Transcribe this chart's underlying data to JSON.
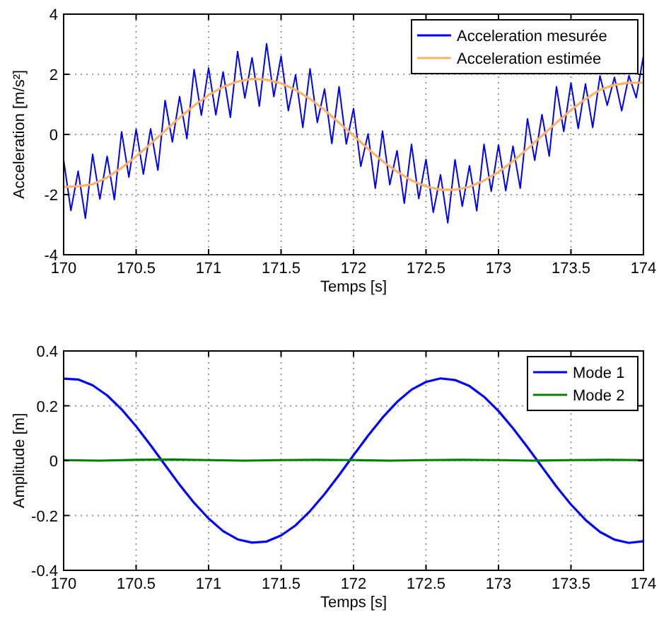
{
  "chart_data": [
    {
      "type": "line",
      "xlabel": "Temps [s]",
      "ylabel": "Acceleration [m/s²]",
      "xlim": [
        170,
        174
      ],
      "ylim": [
        -4,
        4
      ],
      "xticks": [
        170,
        170.5,
        171,
        171.5,
        172,
        172.5,
        173,
        173.5,
        174
      ],
      "yticks": [
        -4,
        -2,
        0,
        2,
        4
      ],
      "grid": true,
      "legend": "top right",
      "line_style": "solid",
      "marker": "none",
      "series": [
        {
          "name": "Acceleration mesurée",
          "color": "#0000ff",
          "x": [
            170,
            170.05,
            170.1,
            170.15,
            170.2,
            170.25,
            170.3,
            170.35,
            170.4,
            170.45,
            170.5,
            170.55,
            170.6,
            170.65,
            170.7,
            170.75,
            170.8,
            170.85,
            170.9,
            170.95,
            171,
            171.05,
            171.1,
            171.15,
            171.2,
            171.25,
            171.3,
            171.35,
            171.4,
            171.45,
            171.5,
            171.55,
            171.6,
            171.65,
            171.7,
            171.75,
            171.8,
            171.85,
            171.9,
            171.95,
            172,
            172.05,
            172.1,
            172.15,
            172.2,
            172.25,
            172.3,
            172.35,
            172.4,
            172.45,
            172.5,
            172.55,
            172.6,
            172.65,
            172.7,
            172.75,
            172.8,
            172.85,
            172.9,
            172.95,
            173,
            173.05,
            173.1,
            173.15,
            173.2,
            173.25,
            173.3,
            173.35,
            173.4,
            173.45,
            173.5,
            173.55,
            173.6,
            173.65,
            173.7,
            173.75,
            173.8,
            173.85,
            173.9,
            173.95,
            174
          ],
          "values": [
            -0.85,
            -2.53,
            -1.22,
            -2.79,
            -0.66,
            -2.15,
            -0.73,
            -2.17,
            0.09,
            -1.42,
            0.17,
            -1.32,
            0.19,
            -1.19,
            1.13,
            -0.25,
            1.26,
            -0.14,
            2.16,
            0.64,
            2.21,
            0.65,
            2.08,
            0.57,
            2.76,
            1.21,
            2.55,
            0.94,
            3.02,
            1.26,
            2.6,
            0.79,
            1.98,
            0.23,
            2.18,
            0.4,
            1.51,
            -0.3,
            1.59,
            -0.32,
            0.86,
            -1.06,
            0.02,
            -1.79,
            0.11,
            -1.67,
            -0.54,
            -2.29,
            -0.33,
            -2.13,
            -0.83,
            -2.59,
            -1.34,
            -2.94,
            -0.84,
            -2.39,
            -1.04,
            -2.54,
            -0.33,
            -1.89,
            -0.35,
            -1.87,
            -0.39,
            -1.79,
            0.52,
            -0.86,
            0.66,
            -0.72,
            1.59,
            0.1,
            1.71,
            0.2,
            1.68,
            0.23,
            1.95,
            0.97,
            1.9,
            0.79,
            1.96,
            1.22,
            2.62
          ]
        },
        {
          "name": "Acceleration estimée",
          "color": "#ffb266",
          "x": [
            170,
            170.1,
            170.2,
            170.3,
            170.4,
            170.5,
            170.6,
            170.7,
            170.8,
            170.9,
            171,
            171.1,
            171.2,
            171.3,
            171.4,
            171.5,
            171.6,
            171.7,
            171.8,
            171.9,
            172,
            172.1,
            172.2,
            172.3,
            172.4,
            172.5,
            172.6,
            172.7,
            172.8,
            172.9,
            173,
            173.1,
            173.2,
            173.3,
            173.4,
            173.5,
            173.6,
            173.7,
            173.8,
            173.9,
            174
          ],
          "values": [
            -1.75,
            -1.72,
            -1.66,
            -1.43,
            -1.11,
            -0.73,
            -0.31,
            0.13,
            0.56,
            0.96,
            1.31,
            1.58,
            1.76,
            1.85,
            1.82,
            1.7,
            1.48,
            1.18,
            0.81,
            0.39,
            -0.04,
            -0.48,
            -0.89,
            -1.24,
            -1.53,
            -1.73,
            -1.84,
            -1.84,
            -1.74,
            -1.53,
            -1.25,
            -0.89,
            -0.48,
            -0.04,
            0.39,
            0.81,
            1.18,
            1.48,
            1.65,
            1.72,
            1.72
          ]
        }
      ]
    },
    {
      "type": "line",
      "xlabel": "Temps [s]",
      "ylabel": "Amplitude [m]",
      "xlim": [
        170,
        174
      ],
      "ylim": [
        -0.4,
        0.4
      ],
      "xticks": [
        170,
        170.5,
        171,
        171.5,
        172,
        172.5,
        173,
        173.5,
        174
      ],
      "yticks": [
        -0.4,
        -0.2,
        0,
        0.2,
        0.4
      ],
      "grid": true,
      "legend": "top right",
      "line_style": "solid",
      "marker": "none",
      "series": [
        {
          "name": "Mode 1",
          "color": "#0000ff",
          "x": [
            170,
            170.1,
            170.2,
            170.3,
            170.4,
            170.5,
            170.6,
            170.7,
            170.8,
            170.9,
            171,
            171.1,
            171.2,
            171.3,
            171.4,
            171.5,
            171.6,
            171.7,
            171.8,
            171.9,
            172,
            172.1,
            172.2,
            172.3,
            172.4,
            172.5,
            172.6,
            172.7,
            172.8,
            172.9,
            173,
            173.1,
            173.2,
            173.3,
            173.4,
            173.5,
            173.6,
            173.7,
            173.8,
            173.9,
            174
          ],
          "values": [
            0.299,
            0.296,
            0.275,
            0.238,
            0.187,
            0.125,
            0.056,
            -0.016,
            -0.088,
            -0.154,
            -0.211,
            -0.257,
            -0.287,
            -0.299,
            -0.295,
            -0.273,
            -0.236,
            -0.184,
            -0.122,
            -0.053,
            0.02,
            0.091,
            0.157,
            0.214,
            0.259,
            0.287,
            0.3,
            0.294,
            0.272,
            0.233,
            0.181,
            0.118,
            0.049,
            -0.023,
            -0.095,
            -0.16,
            -0.216,
            -0.26,
            -0.288,
            -0.3,
            -0.294
          ]
        },
        {
          "name": "Mode 2",
          "color": "#008000",
          "x": [
            170,
            170.25,
            170.5,
            170.75,
            171,
            171.25,
            171.5,
            171.75,
            172,
            172.25,
            172.5,
            172.75,
            173,
            173.25,
            173.5,
            173.75,
            174
          ],
          "values": [
            0.002,
            0,
            0.003,
            0.004,
            0.002,
            0,
            0.002,
            0.003,
            0.002,
            0,
            0.002,
            0.003,
            0.002,
            0,
            0.002,
            0.003,
            0.002
          ]
        }
      ]
    }
  ]
}
